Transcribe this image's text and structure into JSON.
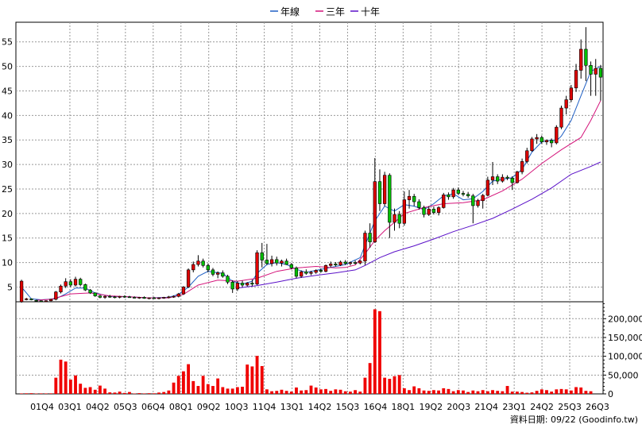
{
  "chart_data": {
    "type": "candlestick",
    "legend": [
      {
        "name": "年線",
        "color": "#1f5fc4"
      },
      {
        "name": "三年",
        "color": "#d4147a"
      },
      {
        "name": "十年",
        "color": "#5a10c8"
      }
    ],
    "price_axis": {
      "ticks": [
        5,
        10,
        15,
        20,
        25,
        30,
        35,
        40,
        45,
        50,
        55
      ],
      "ylim": [
        2,
        59
      ]
    },
    "volume_axis": {
      "ticks": [
        0,
        50000,
        100000,
        150000,
        200000
      ],
      "tick_labels": [
        "0",
        "50,000",
        "100,000",
        "150,000",
        "200,000"
      ],
      "ylim": [
        0,
        245000
      ]
    },
    "x_tick_labels": [
      "01Q4",
      "03Q1",
      "04Q2",
      "05Q3",
      "06Q4",
      "08Q1",
      "09Q2",
      "10Q3",
      "11Q4",
      "13Q1",
      "14Q2",
      "15Q3",
      "16Q4",
      "18Q1",
      "19Q2",
      "20Q3",
      "21Q4",
      "23Q1",
      "24Q2",
      "25Q3",
      "26Q3"
    ],
    "source_label": "資料日期: 09/22 (Goodinfo.tw)",
    "candles": [
      [
        2.0,
        6.5,
        1.8,
        6.2
      ],
      [
        2.5,
        2.8,
        2.3,
        2.6
      ],
      [
        2.6,
        2.7,
        2.3,
        2.4
      ],
      [
        2.3,
        2.4,
        2.1,
        2.2
      ],
      [
        2.2,
        2.3,
        2.0,
        2.1
      ],
      [
        2.1,
        2.3,
        2.0,
        2.2
      ],
      [
        2.2,
        2.6,
        2.1,
        2.5
      ],
      [
        2.5,
        4.2,
        2.3,
        4.0
      ],
      [
        4.0,
        5.5,
        3.7,
        5.2
      ],
      [
        5.2,
        6.8,
        4.8,
        6.1
      ],
      [
        6.1,
        6.6,
        5.0,
        5.4
      ],
      [
        5.4,
        7.1,
        5.1,
        6.6
      ],
      [
        6.6,
        6.9,
        5.2,
        5.5
      ],
      [
        5.5,
        5.7,
        4.2,
        4.4
      ],
      [
        4.4,
        4.6,
        3.6,
        3.8
      ],
      [
        3.8,
        3.9,
        3.0,
        3.2
      ],
      [
        3.2,
        3.4,
        2.7,
        2.9
      ],
      [
        2.9,
        3.3,
        2.6,
        3.1
      ],
      [
        3.1,
        3.4,
        2.8,
        3.0
      ],
      [
        3.0,
        3.2,
        2.7,
        2.9
      ],
      [
        2.9,
        3.2,
        2.7,
        3.1
      ],
      [
        3.1,
        3.3,
        2.8,
        3.0
      ],
      [
        3.0,
        3.2,
        2.8,
        2.9
      ],
      [
        2.9,
        3.1,
        2.7,
        2.8
      ],
      [
        2.8,
        3.0,
        2.6,
        2.9
      ],
      [
        2.9,
        3.1,
        2.6,
        2.7
      ],
      [
        2.7,
        2.9,
        2.5,
        2.8
      ],
      [
        2.8,
        3.0,
        2.6,
        2.7
      ],
      [
        2.7,
        2.9,
        2.5,
        2.8
      ],
      [
        2.8,
        3.0,
        2.6,
        2.9
      ],
      [
        2.9,
        3.2,
        2.7,
        3.0
      ],
      [
        3.0,
        3.3,
        2.8,
        3.1
      ],
      [
        3.1,
        3.8,
        2.9,
        3.6
      ],
      [
        3.6,
        5.2,
        3.4,
        5.0
      ],
      [
        5.0,
        8.8,
        4.8,
        8.5
      ],
      [
        8.5,
        10.2,
        8.0,
        9.6
      ],
      [
        9.6,
        11.5,
        9.2,
        10.3
      ],
      [
        10.3,
        10.8,
        9.0,
        9.4
      ],
      [
        9.4,
        9.8,
        8.0,
        8.5
      ],
      [
        8.5,
        8.9,
        7.2,
        7.6
      ],
      [
        7.6,
        8.2,
        6.8,
        7.9
      ],
      [
        7.9,
        8.4,
        6.9,
        7.2
      ],
      [
        7.2,
        7.5,
        5.6,
        6.0
      ],
      [
        6.0,
        6.4,
        3.8,
        4.6
      ],
      [
        4.6,
        6.2,
        4.2,
        5.8
      ],
      [
        5.8,
        6.3,
        5.0,
        5.4
      ],
      [
        5.4,
        6.0,
        5.1,
        5.8
      ],
      [
        5.8,
        6.5,
        5.2,
        5.6
      ],
      [
        5.6,
        12.5,
        5.4,
        12.0
      ],
      [
        12.0,
        14.0,
        9.0,
        10.5
      ],
      [
        10.5,
        13.8,
        9.5,
        9.8
      ],
      [
        9.8,
        11.4,
        9.2,
        10.6
      ],
      [
        10.6,
        11.2,
        9.4,
        9.9
      ],
      [
        9.9,
        10.6,
        9.2,
        10.3
      ],
      [
        10.3,
        10.8,
        9.5,
        9.6
      ],
      [
        9.6,
        9.9,
        8.6,
        8.9
      ],
      [
        8.9,
        9.2,
        6.8,
        7.2
      ],
      [
        7.2,
        8.4,
        6.9,
        8.1
      ],
      [
        8.1,
        8.6,
        7.5,
        7.8
      ],
      [
        7.8,
        8.3,
        7.4,
        8.0
      ],
      [
        8.0,
        8.6,
        7.7,
        8.4
      ],
      [
        8.4,
        8.8,
        7.9,
        8.2
      ],
      [
        8.2,
        9.6,
        8.0,
        9.4
      ],
      [
        9.4,
        10.2,
        9.0,
        9.7
      ],
      [
        9.7,
        10.1,
        9.2,
        9.5
      ],
      [
        9.5,
        10.4,
        9.3,
        10.1
      ],
      [
        10.1,
        10.5,
        9.5,
        9.8
      ],
      [
        9.8,
        10.2,
        9.4,
        10.0
      ],
      [
        10.0,
        10.4,
        9.6,
        9.9
      ],
      [
        9.9,
        10.5,
        9.6,
        10.3
      ],
      [
        10.3,
        16.5,
        9.5,
        16.0
      ],
      [
        16.0,
        18.0,
        13.0,
        14.2
      ],
      [
        14.2,
        31.3,
        14.0,
        26.5
      ],
      [
        26.5,
        29.0,
        20.5,
        22.0
      ],
      [
        22.0,
        28.5,
        21.5,
        27.8
      ],
      [
        27.8,
        28.2,
        15.0,
        18.2
      ],
      [
        18.2,
        21.0,
        16.5,
        19.8
      ],
      [
        19.8,
        20.5,
        17.0,
        18.0
      ],
      [
        18.0,
        24.5,
        17.5,
        22.8
      ],
      [
        22.8,
        24.8,
        21.0,
        23.5
      ],
      [
        23.5,
        24.0,
        21.5,
        22.4
      ],
      [
        22.4,
        22.9,
        20.8,
        21.2
      ],
      [
        21.2,
        21.6,
        19.2,
        19.8
      ],
      [
        19.8,
        21.5,
        19.5,
        20.9
      ],
      [
        20.9,
        21.4,
        19.8,
        20.2
      ],
      [
        20.2,
        21.5,
        19.6,
        21.2
      ],
      [
        21.2,
        24.2,
        21.0,
        23.8
      ],
      [
        23.8,
        24.3,
        22.8,
        23.4
      ],
      [
        23.4,
        25.2,
        23.0,
        24.8
      ],
      [
        24.8,
        25.3,
        23.8,
        24.1
      ],
      [
        24.1,
        24.6,
        23.5,
        23.9
      ],
      [
        23.9,
        24.4,
        23.2,
        23.6
      ],
      [
        23.6,
        24.0,
        18.0,
        21.6
      ],
      [
        21.6,
        23.0,
        21.2,
        22.6
      ],
      [
        22.6,
        24.0,
        21.0,
        23.7
      ],
      [
        23.7,
        27.5,
        23.5,
        26.8
      ],
      [
        26.8,
        30.5,
        25.8,
        27.5
      ],
      [
        27.5,
        28.0,
        26.0,
        26.6
      ],
      [
        26.6,
        28.0,
        26.3,
        27.4
      ],
      [
        27.4,
        27.8,
        26.8,
        27.2
      ],
      [
        27.2,
        27.6,
        24.8,
        26.3
      ],
      [
        26.3,
        28.7,
        26.1,
        28.5
      ],
      [
        28.5,
        31.2,
        28.0,
        30.6
      ],
      [
        30.6,
        33.4,
        30.2,
        32.8
      ],
      [
        32.8,
        35.6,
        32.6,
        35.2
      ],
      [
        35.2,
        36.2,
        34.2,
        35.5
      ],
      [
        35.5,
        35.9,
        34.2,
        34.6
      ],
      [
        34.6,
        35.1,
        34.0,
        34.9
      ],
      [
        34.9,
        35.3,
        33.5,
        34.4
      ],
      [
        34.4,
        38.0,
        34.1,
        37.6
      ],
      [
        37.6,
        42.0,
        37.2,
        41.5
      ],
      [
        41.5,
        44.0,
        40.2,
        43.2
      ],
      [
        43.2,
        46.2,
        42.7,
        45.6
      ],
      [
        45.6,
        50.5,
        44.8,
        49.2
      ],
      [
        49.2,
        55.5,
        47.5,
        53.5
      ],
      [
        53.5,
        58.0,
        47.0,
        50.2
      ],
      [
        50.2,
        51.0,
        44.0,
        48.4
      ],
      [
        48.4,
        51.5,
        44.0,
        49.6
      ],
      [
        49.6,
        50.3,
        43.0,
        47.8
      ]
    ],
    "volume": [
      1200,
      1500,
      1800,
      1000,
      1300,
      1200,
      1400,
      43000,
      91000,
      86000,
      38000,
      49000,
      27000,
      16000,
      18000,
      11000,
      22000,
      14000,
      4000,
      3500,
      6000,
      2500,
      5000,
      1000,
      2000,
      1200,
      1800,
      1500,
      3500,
      5000,
      9000,
      30000,
      48000,
      60000,
      79000,
      34000,
      21000,
      48000,
      26000,
      21000,
      41000,
      18000,
      14000,
      14000,
      18000,
      19000,
      78000,
      73000,
      101000,
      74000,
      12000,
      7000,
      8000,
      11000,
      8000,
      6000,
      17000,
      9000,
      10000,
      22000,
      17000,
      12000,
      13000,
      8000,
      12000,
      11000,
      7000,
      6000,
      10000,
      6000,
      43000,
      82000,
      225000,
      220000,
      43000,
      40000,
      47000,
      50000,
      15000,
      10000,
      20000,
      15000,
      9000,
      8000,
      10000,
      9000,
      15000,
      13000,
      7000,
      10000,
      9000,
      5000,
      9000,
      7000,
      10000,
      7000,
      10000,
      8000,
      7000,
      21000,
      6000,
      6000,
      5000,
      3000,
      4000,
      8000,
      12000,
      10000,
      6000,
      12000,
      13000,
      12000,
      9000,
      18000,
      17000,
      8000,
      7000
    ],
    "series_lines": {
      "年線": [
        [
          0,
          5.0
        ],
        [
          2,
          2.6
        ],
        [
          4,
          2.4
        ],
        [
          7,
          2.6
        ],
        [
          9,
          3.6
        ],
        [
          11,
          4.8
        ],
        [
          13,
          4.8
        ],
        [
          15,
          3.8
        ],
        [
          18,
          3.1
        ],
        [
          22,
          3.0
        ],
        [
          26,
          2.8
        ],
        [
          30,
          2.9
        ],
        [
          32,
          3.5
        ],
        [
          34,
          5.0
        ],
        [
          36,
          7.2
        ],
        [
          38,
          8.2
        ],
        [
          41,
          7.8
        ],
        [
          43,
          6.2
        ],
        [
          45,
          5.6
        ],
        [
          47,
          6.2
        ],
        [
          48,
          7.8
        ],
        [
          50,
          9.6
        ],
        [
          52,
          10.0
        ],
        [
          54,
          9.6
        ],
        [
          56,
          8.6
        ],
        [
          58,
          8.0
        ],
        [
          60,
          8.4
        ],
        [
          63,
          9.0
        ],
        [
          66,
          9.6
        ],
        [
          69,
          11.0
        ],
        [
          70,
          13.5
        ],
        [
          72,
          18.5
        ],
        [
          74,
          21.5
        ],
        [
          76,
          20.5
        ],
        [
          78,
          21.8
        ],
        [
          80,
          21.5
        ],
        [
          82,
          20.8
        ],
        [
          84,
          22.0
        ],
        [
          86,
          23.6
        ],
        [
          88,
          24.0
        ],
        [
          90,
          22.8
        ],
        [
          92,
          23.0
        ],
        [
          94,
          24.5
        ],
        [
          96,
          26.6
        ],
        [
          98,
          27.0
        ],
        [
          100,
          27.3
        ],
        [
          102,
          29.0
        ],
        [
          104,
          32.5
        ],
        [
          106,
          34.6
        ],
        [
          108,
          35.0
        ],
        [
          109,
          34.8
        ],
        [
          110,
          35.8
        ],
        [
          112,
          39.0
        ],
        [
          114,
          44.0
        ],
        [
          116,
          49.0
        ],
        [
          118,
          50.0
        ]
      ],
      "三年": [
        [
          3,
          2.3
        ],
        [
          6,
          2.5
        ],
        [
          10,
          3.6
        ],
        [
          14,
          3.8
        ],
        [
          18,
          3.2
        ],
        [
          22,
          3.0
        ],
        [
          26,
          2.8
        ],
        [
          30,
          2.8
        ],
        [
          33,
          3.5
        ],
        [
          36,
          5.4
        ],
        [
          40,
          6.4
        ],
        [
          44,
          6.2
        ],
        [
          48,
          6.8
        ],
        [
          52,
          8.2
        ],
        [
          56,
          8.9
        ],
        [
          60,
          9.2
        ],
        [
          64,
          8.9
        ],
        [
          66,
          9.0
        ],
        [
          68,
          9.5
        ],
        [
          70,
          11.8
        ],
        [
          72,
          14.5
        ],
        [
          74,
          16.5
        ],
        [
          76,
          18.2
        ],
        [
          78,
          20.0
        ],
        [
          82,
          21.2
        ],
        [
          86,
          22.0
        ],
        [
          90,
          22.2
        ],
        [
          94,
          22.8
        ],
        [
          98,
          24.6
        ],
        [
          102,
          27.0
        ],
        [
          106,
          30.2
        ],
        [
          110,
          33.0
        ],
        [
          114,
          35.5
        ],
        [
          116,
          39.0
        ],
        [
          118,
          43.0
        ]
      ],
      "十年": [
        [
          44,
          4.8
        ],
        [
          48,
          5.3
        ],
        [
          52,
          6.0
        ],
        [
          56,
          6.8
        ],
        [
          60,
          7.4
        ],
        [
          64,
          7.9
        ],
        [
          68,
          8.5
        ],
        [
          70,
          9.4
        ],
        [
          73,
          11.0
        ],
        [
          76,
          12.2
        ],
        [
          80,
          13.4
        ],
        [
          84,
          14.8
        ],
        [
          88,
          16.3
        ],
        [
          92,
          17.6
        ],
        [
          96,
          19.0
        ],
        [
          100,
          20.9
        ],
        [
          104,
          22.9
        ],
        [
          108,
          25.2
        ],
        [
          112,
          28.0
        ],
        [
          116,
          29.6
        ],
        [
          118,
          30.5
        ]
      ]
    }
  }
}
